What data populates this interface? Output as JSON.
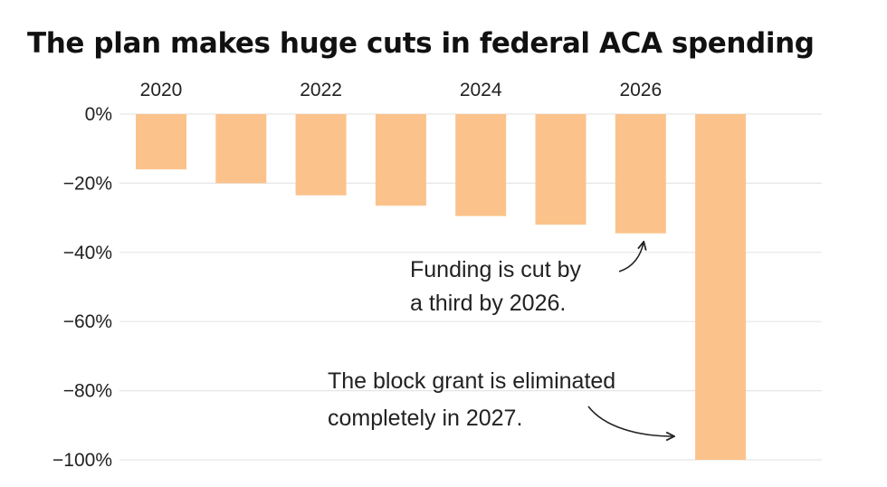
{
  "chart_data": {
    "type": "bar",
    "title": "The plan makes huge cuts in federal ACA spending",
    "categories": [
      "2020",
      "2021",
      "2022",
      "2023",
      "2024",
      "2025",
      "2026",
      "2027"
    ],
    "x_tick_labels": [
      "2020",
      "2022",
      "2024",
      "2026"
    ],
    "values": [
      -16,
      -20,
      -23.5,
      -26.5,
      -29.5,
      -32,
      -34.5,
      -100
    ],
    "ylim": [
      -100,
      0
    ],
    "y_tick_labels": [
      "0%",
      "−20%",
      "−40%",
      "−60%",
      "−80%",
      "−100%"
    ],
    "y_ticks": [
      0,
      -20,
      -40,
      -60,
      -80,
      -100
    ],
    "grid": true,
    "bar_color": "#fbc38b",
    "annotations": [
      {
        "lines": [
          "Funding is cut by",
          "a third by 2026."
        ],
        "points_to": "2026"
      },
      {
        "lines": [
          "The block grant is eliminated",
          "completely in 2027."
        ],
        "points_to": "2027"
      }
    ]
  }
}
